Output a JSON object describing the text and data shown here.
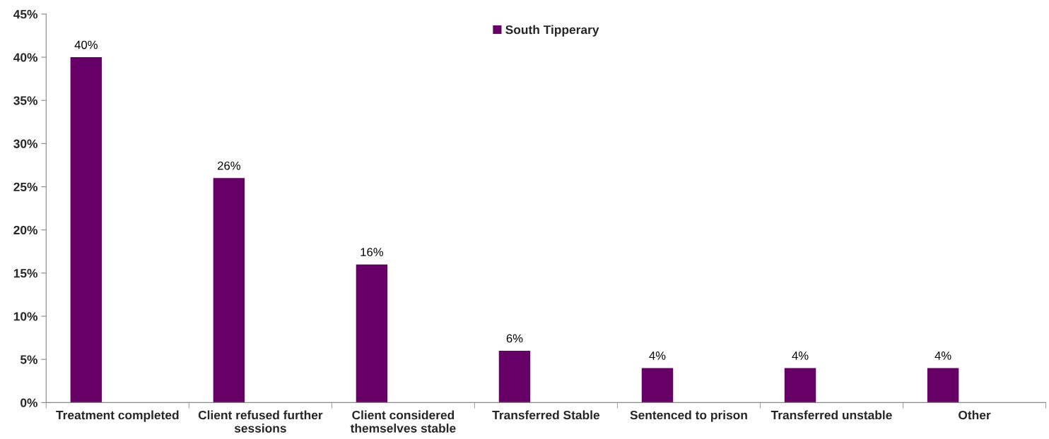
{
  "chart_data": {
    "type": "bar",
    "categories": [
      "Treatment completed",
      "Client refused further\nsessions",
      "Client considered\nthemselves stable",
      "Transferred Stable",
      "Sentenced to prison",
      "Transferred unstable",
      "Other"
    ],
    "series": [
      {
        "name": "South Tipperary",
        "color": "#660066",
        "values": [
          40,
          26,
          16,
          6,
          4,
          4,
          4
        ],
        "value_labels": [
          "40%",
          "26%",
          "16%",
          "6%",
          "4%",
          "4%",
          "4%"
        ]
      }
    ],
    "ylim": [
      0,
      45
    ],
    "yticks": [
      {
        "value": 0,
        "label": "0%"
      },
      {
        "value": 5,
        "label": "5%"
      },
      {
        "value": 10,
        "label": "10%"
      },
      {
        "value": 15,
        "label": "15%"
      },
      {
        "value": 20,
        "label": "20%"
      },
      {
        "value": 25,
        "label": "25%"
      },
      {
        "value": 30,
        "label": "30%"
      },
      {
        "value": 35,
        "label": "35%"
      },
      {
        "value": 40,
        "label": "40%"
      },
      {
        "value": 45,
        "label": "45%"
      }
    ],
    "legend": "top"
  }
}
